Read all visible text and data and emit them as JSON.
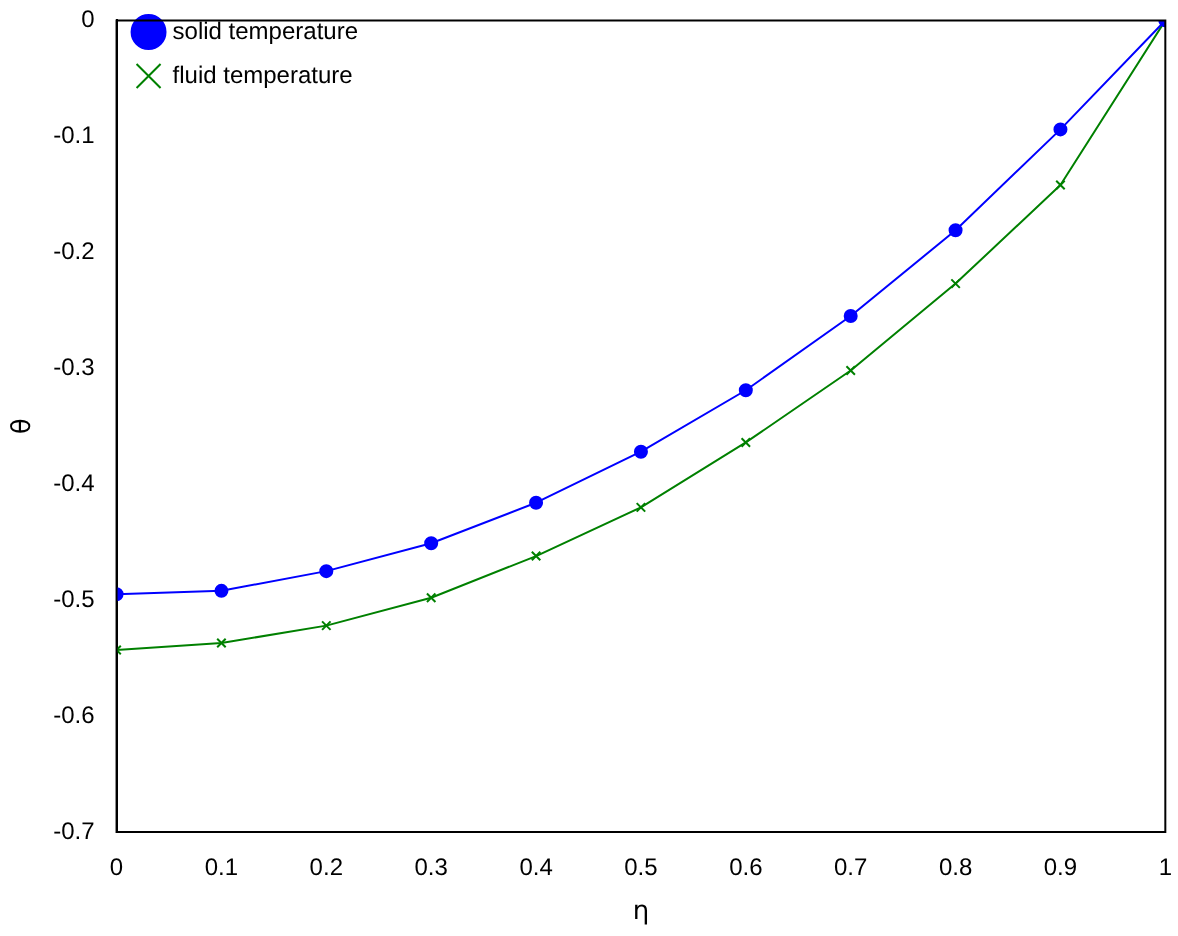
{
  "chart_data": {
    "type": "line",
    "xlabel": "η",
    "ylabel": "θ",
    "x": [
      0,
      0.1,
      0.2,
      0.3,
      0.4,
      0.5,
      0.6,
      0.7,
      0.8,
      0.9,
      1
    ],
    "series": [
      {
        "name": "solid temperature",
        "color": "#0000ff",
        "marker": "circle",
        "values": [
          -0.495,
          -0.492,
          -0.475,
          -0.451,
          -0.416,
          -0.372,
          -0.319,
          -0.255,
          -0.181,
          -0.094,
          0
        ]
      },
      {
        "name": "fluid temperature",
        "color": "#008000",
        "marker": "cross",
        "values": [
          -0.543,
          -0.537,
          -0.522,
          -0.498,
          -0.462,
          -0.42,
          -0.364,
          -0.302,
          -0.227,
          -0.142,
          0
        ]
      }
    ],
    "xlim": [
      0,
      1
    ],
    "xticks": [
      0,
      0.1,
      0.2,
      0.3,
      0.4,
      0.5,
      0.6,
      0.7,
      0.8,
      0.9,
      1
    ],
    "ylim": [
      -0.7,
      0
    ],
    "yticks": [
      -0.7,
      -0.6,
      -0.5,
      -0.4,
      -0.3,
      -0.2,
      -0.1,
      0
    ],
    "grid": false,
    "legend": "top left"
  }
}
